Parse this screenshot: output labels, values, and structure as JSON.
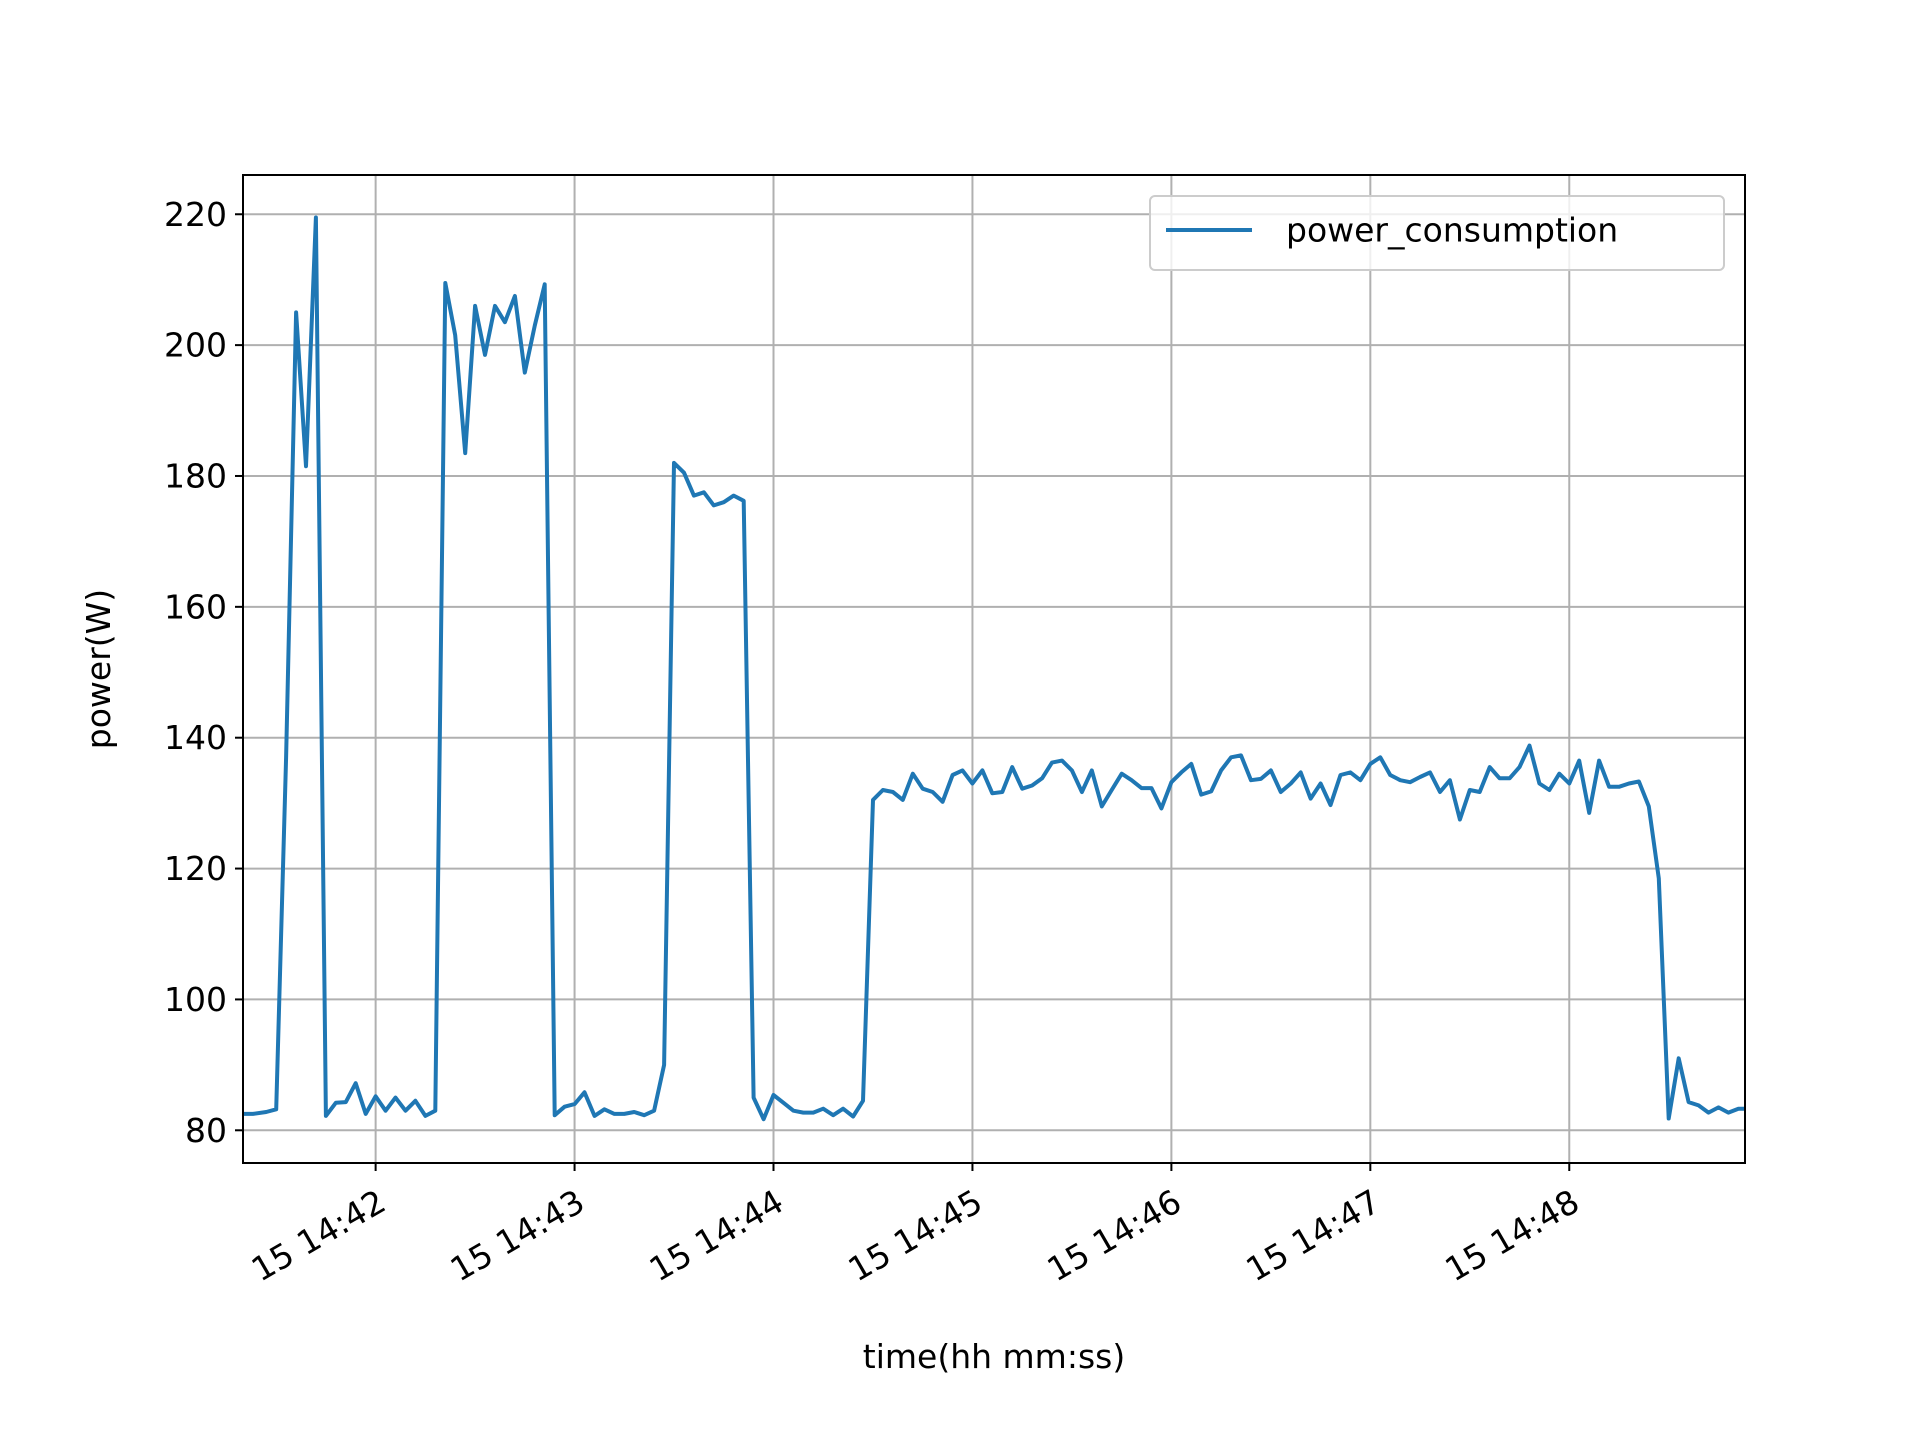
{
  "chart_data": {
    "type": "line",
    "title": "",
    "xlabel": "time(hh mm:ss)",
    "ylabel": "power(W)",
    "x_ticks": [
      "15 14:42",
      "15 14:43",
      "15 14:44",
      "15 14:45",
      "15 14:46",
      "15 14:47",
      "15 14:48"
    ],
    "x_tick_times": [
      "14:42:00",
      "14:43:00",
      "14:44:00",
      "14:45:00",
      "14:46:00",
      "14:47:00",
      "14:48:00"
    ],
    "y_ticks": [
      80,
      100,
      120,
      140,
      160,
      180,
      200,
      220
    ],
    "xlim": [
      "14:41:20",
      "14:48:53"
    ],
    "ylim": [
      75,
      226
    ],
    "grid": true,
    "legend": "top-right",
    "line_color": "#1f77b4",
    "series": [
      {
        "name": "power_consumption",
        "x": [
          "14:41:20",
          "14:41:23",
          "14:41:27",
          "14:41:30",
          "14:41:33",
          "14:41:36",
          "14:41:39",
          "14:41:42",
          "14:41:45",
          "14:41:48",
          "14:41:51",
          "14:41:54",
          "14:41:57",
          "14:42:00",
          "14:42:03",
          "14:42:06",
          "14:42:09",
          "14:42:12",
          "14:42:15",
          "14:42:18",
          "14:42:21",
          "14:42:24",
          "14:42:27",
          "14:42:30",
          "14:42:33",
          "14:42:36",
          "14:42:39",
          "14:42:42",
          "14:42:45",
          "14:42:48",
          "14:42:51",
          "14:42:54",
          "14:42:57",
          "14:43:00",
          "14:43:03",
          "14:43:06",
          "14:43:09",
          "14:43:12",
          "14:43:15",
          "14:43:18",
          "14:43:21",
          "14:43:24",
          "14:43:27",
          "14:43:30",
          "14:43:33",
          "14:43:36",
          "14:43:39",
          "14:43:42",
          "14:43:45",
          "14:43:48",
          "14:43:51",
          "14:43:54",
          "14:43:57",
          "14:44:00",
          "14:44:03",
          "14:44:06",
          "14:44:09",
          "14:44:12",
          "14:44:15",
          "14:44:18",
          "14:44:21",
          "14:44:24",
          "14:44:27",
          "14:44:30",
          "14:44:33",
          "14:44:36",
          "14:44:39",
          "14:44:42",
          "14:44:45",
          "14:44:48",
          "14:44:51",
          "14:44:54",
          "14:44:57",
          "14:45:00",
          "14:45:03",
          "14:45:06",
          "14:45:09",
          "14:45:12",
          "14:45:15",
          "14:45:18",
          "14:45:21",
          "14:45:24",
          "14:45:27",
          "14:45:30",
          "14:45:33",
          "14:45:36",
          "14:45:39",
          "14:45:42",
          "14:45:45",
          "14:45:48",
          "14:45:51",
          "14:45:54",
          "14:45:57",
          "14:46:00",
          "14:46:03",
          "14:46:06",
          "14:46:09",
          "14:46:12",
          "14:46:15",
          "14:46:18",
          "14:46:21",
          "14:46:24",
          "14:46:27",
          "14:46:30",
          "14:46:33",
          "14:46:36",
          "14:46:39",
          "14:46:42",
          "14:46:45",
          "14:46:48",
          "14:46:51",
          "14:46:54",
          "14:46:57",
          "14:47:00",
          "14:47:03",
          "14:47:06",
          "14:47:09",
          "14:47:12",
          "14:47:15",
          "14:47:18",
          "14:47:21",
          "14:47:24",
          "14:47:27",
          "14:47:30",
          "14:47:33",
          "14:47:36",
          "14:47:39",
          "14:47:42",
          "14:47:45",
          "14:47:48",
          "14:47:51",
          "14:47:54",
          "14:47:57",
          "14:48:00",
          "14:48:03",
          "14:48:06",
          "14:48:09",
          "14:48:12",
          "14:48:15",
          "14:48:18",
          "14:48:21",
          "14:48:24",
          "14:48:27",
          "14:48:30",
          "14:48:33",
          "14:48:36",
          "14:48:39",
          "14:48:42",
          "14:48:45",
          "14:48:48",
          "14:48:51",
          "14:48:53"
        ],
        "values": [
          82.5,
          82.5,
          82.8,
          83.2,
          137,
          205,
          181.5,
          219.5,
          82.2,
          84.2,
          84.3,
          87.2,
          82.5,
          85.2,
          83,
          85,
          83,
          84.5,
          82.2,
          83,
          209.5,
          201.5,
          183.5,
          206,
          198.5,
          206,
          203.5,
          207.5,
          195.8,
          203,
          209.3,
          82.3,
          83.6,
          84,
          85.8,
          82.2,
          83.2,
          82.5,
          82.5,
          82.8,
          82.3,
          83,
          90,
          182,
          180.5,
          177,
          177.5,
          175.5,
          176,
          177,
          176.2,
          85,
          81.7,
          85.4,
          84.2,
          83,
          82.7,
          82.7,
          83.3,
          82.3,
          83.3,
          82.1,
          84.5,
          130.5,
          132,
          131.7,
          130.5,
          134.5,
          132.2,
          131.7,
          130.2,
          134.3,
          135,
          133,
          135,
          131.5,
          131.7,
          135.5,
          132.2,
          132.7,
          133.8,
          136.2,
          136.5,
          135,
          131.7,
          135,
          129.5,
          132,
          134.5,
          133.5,
          132.3,
          132.3,
          129.2,
          133.2,
          134.7,
          136,
          131.3,
          131.8,
          135,
          137,
          137.3,
          133.5,
          133.7,
          135,
          131.7,
          133,
          134.7,
          130.7,
          133,
          129.7,
          134.3,
          134.7,
          133.5,
          136,
          137,
          134.3,
          133.5,
          133.2,
          134,
          134.7,
          131.7,
          133.5,
          127.5,
          132,
          131.7,
          135.5,
          133.8,
          133.8,
          135.5,
          138.8,
          133,
          132,
          134.5,
          133,
          136.5,
          128.5,
          136.5,
          132.5,
          132.5,
          133,
          133.3,
          129.5,
          118.5,
          81.8,
          91,
          84.3,
          83.8,
          82.7,
          83.5,
          82.7,
          83.3,
          83.3
        ]
      }
    ]
  }
}
